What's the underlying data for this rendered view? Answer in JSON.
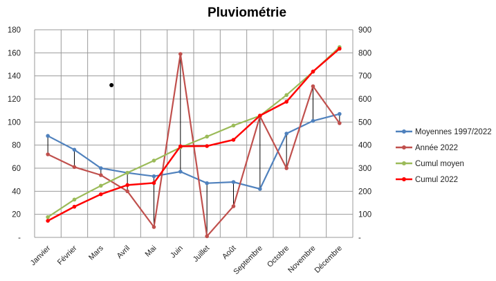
{
  "chart_data": {
    "type": "line",
    "title": "Pluviométrie",
    "categories": [
      "Janvier",
      "Février",
      "Mars",
      "Avril",
      "Mai",
      "Juin",
      "Juillet",
      "Août",
      "Septembre",
      "Octobre",
      "Novembre",
      "Décembre"
    ],
    "y_left": {
      "range": [
        0,
        180
      ],
      "ticks": [
        "-",
        "20",
        "40",
        "60",
        "80",
        "100",
        "120",
        "140",
        "160",
        "180"
      ]
    },
    "y_right": {
      "range": [
        0,
        900
      ],
      "ticks": [
        "-",
        "100",
        "200",
        "300",
        "400",
        "500",
        "600",
        "700",
        "800",
        "900"
      ]
    },
    "grid": true,
    "legend_position": "right",
    "high_low_lines": true,
    "series": [
      {
        "name": "Moyennes 1997/2022",
        "axis": "left",
        "color": "#4f81bd",
        "values": [
          88,
          76,
          60,
          56,
          53,
          57,
          47,
          48,
          42,
          90,
          101,
          107
        ]
      },
      {
        "name": "Année 2022",
        "axis": "left",
        "color": "#c0504d",
        "values": [
          72,
          61,
          54,
          40,
          9,
          159,
          1,
          27,
          105,
          60,
          131,
          99
        ]
      },
      {
        "name": "Cumul moyen",
        "axis": "right",
        "color": "#9bbb59",
        "values": [
          88,
          164,
          224,
          280,
          333,
          390,
          437,
          485,
          527,
          617,
          718,
          825
        ]
      },
      {
        "name": "Cumul 2022",
        "axis": "right",
        "color": "#ff0000",
        "values": [
          72,
          133,
          187,
          227,
          236,
          395,
          396,
          423,
          528,
          588,
          719,
          818
        ]
      }
    ],
    "stray_point": {
      "axis": "left",
      "category": "Mars",
      "offset": 0.4,
      "value": 132,
      "color": "#000000"
    }
  }
}
